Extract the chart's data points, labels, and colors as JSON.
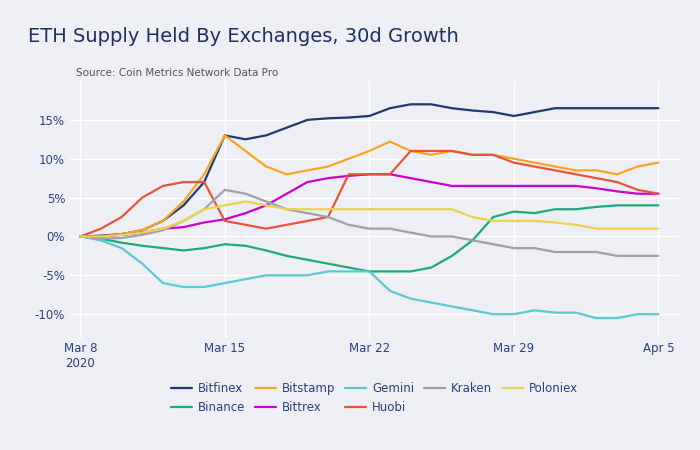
{
  "title": "ETH Supply Held By Exchanges, 30d Growth",
  "source": "Source: Coin Metrics Network Data Pro",
  "x_ticks": [
    "Mar 8\n2020",
    "Mar 15",
    "Mar 22",
    "Mar 29",
    "Apr 5"
  ],
  "x_tick_positions": [
    0,
    7,
    14,
    21,
    28
  ],
  "ylim": [
    -13,
    20
  ],
  "y_ticks": [
    -10,
    -5,
    0,
    5,
    10,
    15
  ],
  "background_color": "#eeeff4",
  "plot_bg_color": "#eeeff4",
  "title_color": "#1e3060",
  "tick_color": "#2a4080",
  "source_color": "#555555",
  "grid_color": "#ffffff",
  "legend_order": [
    "Bitfinex",
    "Binance",
    "Bitstamp",
    "Bittrex",
    "Gemini",
    "Huobi",
    "Kraken",
    "Poloniex"
  ],
  "series": {
    "Bitfinex": {
      "color": "#1e3a6e",
      "data_x": [
        0,
        1,
        2,
        3,
        4,
        5,
        6,
        7,
        8,
        9,
        10,
        11,
        12,
        13,
        14,
        15,
        16,
        17,
        18,
        19,
        20,
        21,
        22,
        23,
        24,
        25,
        26,
        27,
        28
      ],
      "data_y": [
        0,
        0.1,
        0.3,
        0.8,
        2,
        4,
        7,
        13,
        12.5,
        13,
        14,
        15,
        15.2,
        15.3,
        15.5,
        16.5,
        17,
        17,
        16.5,
        16.2,
        16,
        15.5,
        16,
        16.5,
        16.5,
        16.5,
        16.5,
        16.5,
        16.5
      ]
    },
    "Binance": {
      "color": "#1aab78",
      "data_x": [
        0,
        1,
        2,
        3,
        4,
        5,
        6,
        7,
        8,
        9,
        10,
        11,
        12,
        13,
        14,
        15,
        16,
        17,
        18,
        19,
        20,
        21,
        22,
        23,
        24,
        25,
        26,
        27,
        28
      ],
      "data_y": [
        0,
        -0.3,
        -0.8,
        -1.2,
        -1.5,
        -1.8,
        -1.5,
        -1,
        -1.2,
        -1.8,
        -2.5,
        -3,
        -3.5,
        -4,
        -4.5,
        -4.5,
        -4.5,
        -4,
        -2.5,
        -0.5,
        2.5,
        3.2,
        3,
        3.5,
        3.5,
        3.8,
        4,
        4,
        4
      ]
    },
    "Bitstamp": {
      "color": "#f5a623",
      "data_x": [
        0,
        1,
        2,
        3,
        4,
        5,
        6,
        7,
        8,
        9,
        10,
        11,
        12,
        13,
        14,
        15,
        16,
        17,
        18,
        19,
        20,
        21,
        22,
        23,
        24,
        25,
        26,
        27,
        28
      ],
      "data_y": [
        0,
        0,
        0.3,
        0.8,
        2,
        4.5,
        8,
        13,
        11,
        9,
        8,
        8.5,
        9,
        10,
        11,
        12.2,
        11,
        10.5,
        11,
        10.5,
        10.5,
        10,
        9.5,
        9,
        8.5,
        8.5,
        8,
        9,
        9.5
      ]
    },
    "Bittrex": {
      "color": "#cc00cc",
      "data_x": [
        0,
        1,
        2,
        3,
        4,
        5,
        6,
        7,
        8,
        9,
        10,
        11,
        12,
        13,
        14,
        15,
        16,
        17,
        18,
        19,
        20,
        21,
        22,
        23,
        24,
        25,
        26,
        27,
        28
      ],
      "data_y": [
        0,
        0,
        0.2,
        0.5,
        1,
        1.2,
        1.8,
        2.2,
        3,
        4,
        5.5,
        7,
        7.5,
        7.8,
        8,
        8,
        7.5,
        7,
        6.5,
        6.5,
        6.5,
        6.5,
        6.5,
        6.5,
        6.5,
        6.2,
        5.8,
        5.5,
        5.5
      ]
    },
    "Gemini": {
      "color": "#5bc8d6",
      "data_x": [
        0,
        1,
        2,
        3,
        4,
        5,
        6,
        7,
        8,
        9,
        10,
        11,
        12,
        13,
        14,
        15,
        16,
        17,
        18,
        19,
        20,
        21,
        22,
        23,
        24,
        25,
        26,
        27,
        28
      ],
      "data_y": [
        0,
        -0.5,
        -1.5,
        -3.5,
        -6,
        -6.5,
        -6.5,
        -6,
        -5.5,
        -5,
        -5,
        -5,
        -4.5,
        -4.5,
        -4.5,
        -7,
        -8,
        -8.5,
        -9,
        -9.5,
        -10,
        -10,
        -9.5,
        -9.8,
        -9.8,
        -10.5,
        -10.5,
        -10,
        -10
      ]
    },
    "Huobi": {
      "color": "#e8543a",
      "data_x": [
        0,
        1,
        2,
        3,
        4,
        5,
        6,
        7,
        8,
        9,
        10,
        11,
        12,
        13,
        14,
        15,
        16,
        17,
        18,
        19,
        20,
        21,
        22,
        23,
        24,
        25,
        26,
        27,
        28
      ],
      "data_y": [
        0,
        1,
        2.5,
        5,
        6.5,
        7,
        7,
        2,
        1.5,
        1,
        1.5,
        2,
        2.5,
        8,
        8,
        8,
        11,
        11,
        11,
        10.5,
        10.5,
        9.5,
        9,
        8.5,
        8,
        7.5,
        7,
        6,
        5.5
      ]
    },
    "Kraken": {
      "color": "#a0a0aa",
      "data_x": [
        0,
        1,
        2,
        3,
        4,
        5,
        6,
        7,
        8,
        9,
        10,
        11,
        12,
        13,
        14,
        15,
        16,
        17,
        18,
        19,
        20,
        21,
        22,
        23,
        24,
        25,
        26,
        27,
        28
      ],
      "data_y": [
        0,
        -0.3,
        -0.2,
        0.2,
        0.8,
        2,
        3.5,
        6,
        5.5,
        4.5,
        3.5,
        3,
        2.5,
        1.5,
        1,
        1,
        0.5,
        0,
        0,
        -0.5,
        -1,
        -1.5,
        -1.5,
        -2,
        -2,
        -2,
        -2.5,
        -2.5,
        -2.5
      ]
    },
    "Poloniex": {
      "color": "#e8d44d",
      "data_x": [
        0,
        1,
        2,
        3,
        4,
        5,
        6,
        7,
        8,
        9,
        10,
        11,
        12,
        13,
        14,
        15,
        16,
        17,
        18,
        19,
        20,
        21,
        22,
        23,
        24,
        25,
        26,
        27,
        28
      ],
      "data_y": [
        0,
        0,
        0.2,
        0.5,
        1,
        2,
        3.5,
        4,
        4.5,
        4,
        3.5,
        3.5,
        3.5,
        3.5,
        3.5,
        3.5,
        3.5,
        3.5,
        3.5,
        2.5,
        2,
        2,
        2,
        1.8,
        1.5,
        1,
        1,
        1,
        1
      ]
    }
  }
}
